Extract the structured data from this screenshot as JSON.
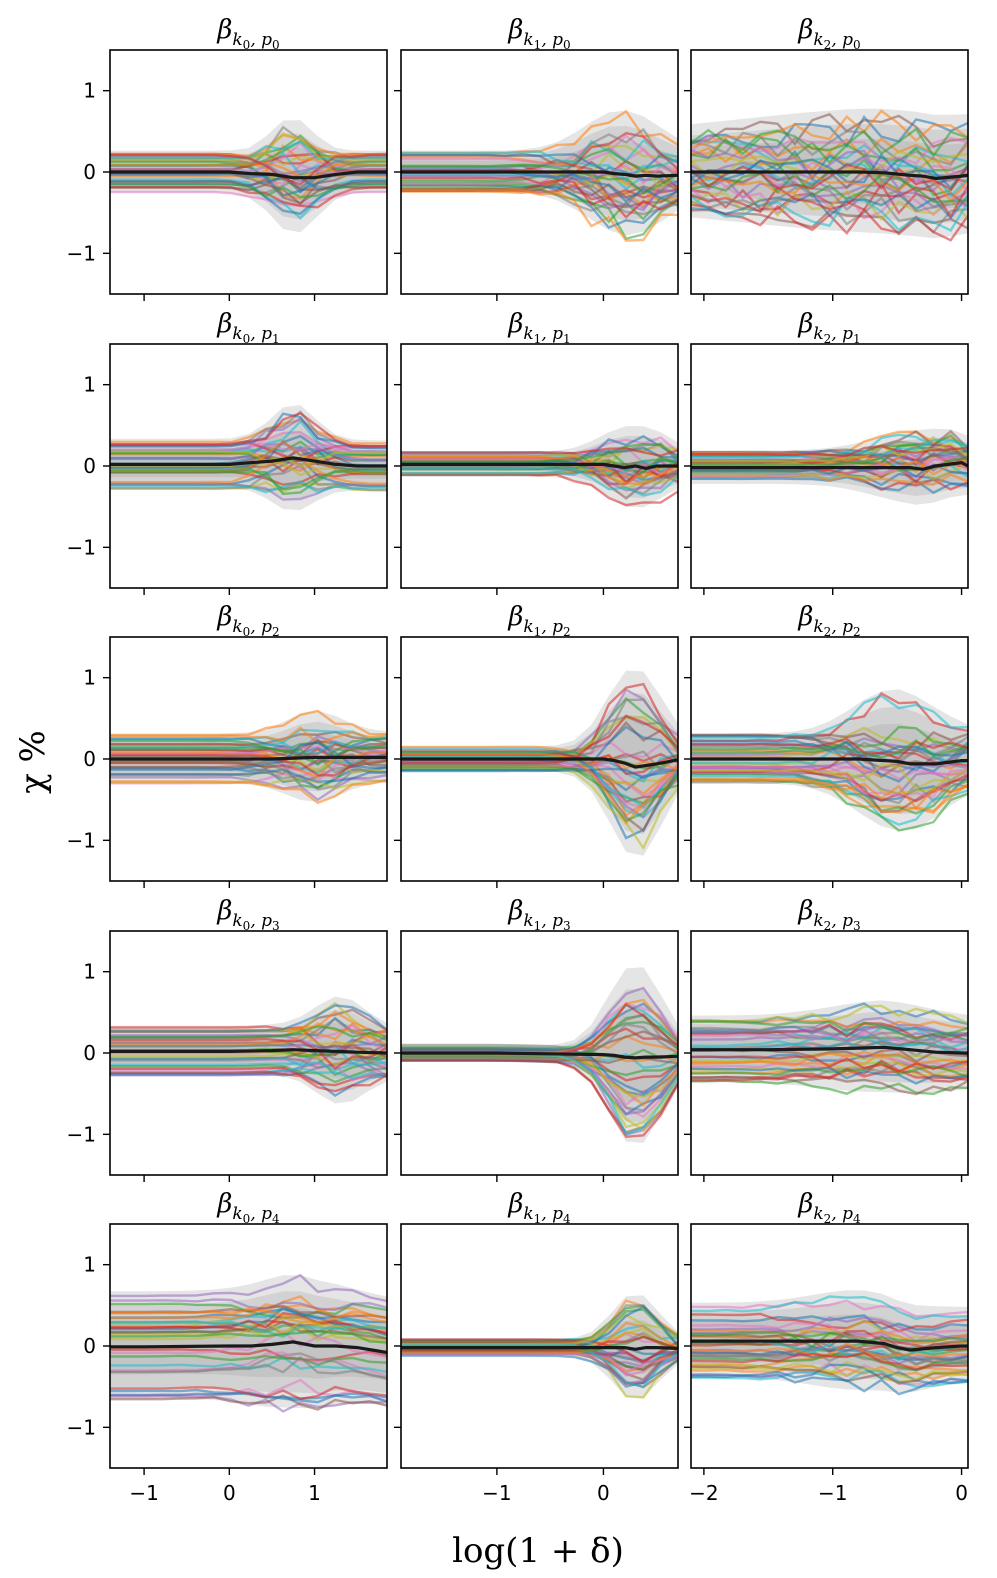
{
  "figure": {
    "ylabel": "χ %",
    "xlabel": "log(1 + δ)"
  },
  "chart_data": {
    "type": "line",
    "rows": 5,
    "cols": 3,
    "ylim": [
      -1.5,
      1.5
    ],
    "yticks": [
      -1,
      0,
      1
    ],
    "ytick_labels": [
      "−1",
      "0",
      "1"
    ],
    "grid": false,
    "columns": [
      {
        "xlim": [
          -1.4,
          1.85
        ],
        "xticks": [
          -1,
          0,
          1
        ],
        "xtick_labels": [
          "−1",
          "0",
          "1"
        ]
      },
      {
        "xlim": [
          -1.9,
          0.7
        ],
        "xticks": [
          -1,
          0
        ],
        "xtick_labels": [
          "−1",
          "0"
        ]
      },
      {
        "xlim": [
          -2.1,
          0.05
        ],
        "xticks": [
          -2,
          -1,
          0
        ],
        "xtick_labels": [
          "−2",
          "−1",
          "0"
        ]
      }
    ],
    "panels": [
      {
        "title": {
          "k": "0",
          "p": "0"
        },
        "band": 0.25,
        "extra": 0.45,
        "peak_x": 0.75,
        "spread": 0.35,
        "noise": 0.15,
        "mean": {
          "x": [
            -1.4,
            -1.0,
            -0.5,
            0.0,
            0.25,
            0.5,
            0.75,
            1.0,
            1.25,
            1.5,
            1.85
          ],
          "y": [
            0.0,
            0.0,
            0.0,
            0.0,
            -0.02,
            -0.03,
            -0.07,
            -0.07,
            -0.03,
            0.0,
            0.0
          ]
        }
      },
      {
        "title": {
          "k": "1",
          "p": "0"
        },
        "band": 0.25,
        "extra": 0.5,
        "peak_x": 0.2,
        "spread": 0.5,
        "noise": 0.18,
        "mean": {
          "x": [
            -1.9,
            -1.0,
            -0.5,
            0.0,
            0.1,
            0.2,
            0.3,
            0.4,
            0.5,
            0.7
          ],
          "y": [
            0.0,
            0.0,
            0.0,
            0.0,
            -0.02,
            -0.03,
            -0.05,
            -0.04,
            -0.05,
            -0.04
          ]
        }
      },
      {
        "title": {
          "k": "2",
          "p": "0"
        },
        "band": 0.45,
        "extra": 0.3,
        "peak_x": -0.5,
        "spread": 1.6,
        "noise": 0.2,
        "mean": {
          "x": [
            -2.1,
            -1.5,
            -1.0,
            -0.8,
            -0.6,
            -0.4,
            -0.3,
            -0.2,
            0.0,
            0.05
          ],
          "y": [
            0.0,
            0.0,
            0.0,
            0.0,
            -0.01,
            -0.04,
            -0.05,
            -0.08,
            -0.05,
            -0.04
          ]
        }
      },
      {
        "title": {
          "k": "0",
          "p": "1"
        },
        "band": 0.3,
        "extra": 0.35,
        "peak_x": 0.75,
        "spread": 0.35,
        "noise": 0.12,
        "mean": {
          "x": [
            -1.4,
            -1.0,
            0.0,
            0.25,
            0.5,
            0.75,
            1.0,
            1.25,
            1.5,
            1.85
          ],
          "y": [
            0.02,
            0.02,
            0.02,
            0.04,
            0.06,
            0.1,
            0.06,
            0.02,
            0.0,
            0.0
          ]
        }
      },
      {
        "title": {
          "k": "1",
          "p": "1"
        },
        "band": 0.15,
        "extra": 0.35,
        "peak_x": 0.3,
        "spread": 0.4,
        "noise": 0.12,
        "mean": {
          "x": [
            -1.9,
            -1.0,
            -0.5,
            0.0,
            0.1,
            0.2,
            0.3,
            0.4,
            0.5,
            0.7
          ],
          "y": [
            0.02,
            0.02,
            0.02,
            0.02,
            0.0,
            -0.02,
            0.0,
            -0.03,
            0.0,
            0.0
          ]
        }
      },
      {
        "title": {
          "k": "2",
          "p": "1"
        },
        "band": 0.2,
        "extra": 0.25,
        "peak_x": -0.3,
        "spread": 0.5,
        "noise": 0.12,
        "mean": {
          "x": [
            -2.1,
            -1.5,
            -1.0,
            -0.6,
            -0.4,
            -0.3,
            -0.2,
            0.0,
            0.05
          ],
          "y": [
            -0.02,
            -0.02,
            -0.02,
            -0.02,
            -0.02,
            -0.04,
            0.0,
            0.04,
            0.0
          ]
        }
      },
      {
        "title": {
          "k": "0",
          "p": "2"
        },
        "band": 0.3,
        "extra": 0.25,
        "peak_x": 1.0,
        "spread": 0.45,
        "noise": 0.12,
        "mean": {
          "x": [
            -1.4,
            -1.0,
            0.0,
            0.5,
            1.0,
            1.25,
            1.5,
            1.85
          ],
          "y": [
            0.0,
            0.0,
            0.0,
            0.0,
            0.02,
            0.02,
            0.02,
            0.02
          ]
        }
      },
      {
        "title": {
          "k": "1",
          "p": "2"
        },
        "band": 0.15,
        "extra": 1.0,
        "peak_x": 0.3,
        "spread": 0.35,
        "noise": 0.15,
        "mean": {
          "x": [
            -1.9,
            -1.0,
            -0.5,
            0.0,
            0.1,
            0.2,
            0.3,
            0.4,
            0.5,
            0.7
          ],
          "y": [
            0.0,
            0.0,
            0.0,
            0.0,
            -0.02,
            -0.05,
            -0.1,
            -0.08,
            -0.06,
            -0.01
          ]
        }
      },
      {
        "title": {
          "k": "2",
          "p": "2"
        },
        "band": 0.3,
        "extra": 0.55,
        "peak_x": -0.5,
        "spread": 0.45,
        "noise": 0.15,
        "mean": {
          "x": [
            -2.1,
            -1.5,
            -1.0,
            -0.8,
            -0.6,
            -0.5,
            -0.4,
            -0.2,
            0.0,
            0.05
          ],
          "y": [
            0.0,
            0.0,
            0.0,
            0.0,
            -0.02,
            -0.03,
            -0.06,
            -0.06,
            -0.02,
            -0.02
          ]
        }
      },
      {
        "title": {
          "k": "0",
          "p": "3"
        },
        "band": 0.3,
        "extra": 0.35,
        "peak_x": 1.3,
        "spread": 0.4,
        "noise": 0.12,
        "mean": {
          "x": [
            -1.4,
            -1.0,
            0.0,
            0.5,
            0.75,
            1.0,
            1.25,
            1.5,
            1.85
          ],
          "y": [
            0.02,
            0.02,
            0.02,
            0.03,
            0.04,
            0.03,
            0.02,
            0.01,
            0.0
          ]
        }
      },
      {
        "title": {
          "k": "1",
          "p": "3"
        },
        "band": 0.1,
        "extra": 1.0,
        "peak_x": 0.3,
        "spread": 0.35,
        "noise": 0.1,
        "mean": {
          "x": [
            -1.9,
            -1.0,
            -0.5,
            0.0,
            0.1,
            0.2,
            0.3,
            0.4,
            0.5,
            0.7
          ],
          "y": [
            0.0,
            0.0,
            -0.01,
            -0.02,
            -0.03,
            -0.05,
            -0.06,
            -0.05,
            -0.05,
            -0.04
          ]
        }
      },
      {
        "title": {
          "k": "2",
          "p": "3"
        },
        "band": 0.4,
        "extra": 0.15,
        "peak_x": -0.6,
        "spread": 0.6,
        "noise": 0.1,
        "mean": {
          "x": [
            -2.1,
            -1.5,
            -1.0,
            -0.8,
            -0.6,
            -0.4,
            -0.2,
            0.0,
            0.05
          ],
          "y": [
            0.04,
            0.04,
            0.05,
            0.06,
            0.07,
            0.04,
            0.01,
            0.0,
            0.0
          ]
        }
      },
      {
        "title": {
          "k": "0",
          "p": "4"
        },
        "band": 0.65,
        "extra": 0.15,
        "peak_x": 0.75,
        "spread": 0.6,
        "noise": 0.1,
        "mean": {
          "x": [
            -1.4,
            -1.0,
            0.0,
            0.25,
            0.5,
            0.75,
            1.0,
            1.25,
            1.5,
            1.85
          ],
          "y": [
            -0.01,
            -0.01,
            0.0,
            0.0,
            0.02,
            0.05,
            0.0,
            0.0,
            -0.02,
            -0.08
          ]
        }
      },
      {
        "title": {
          "k": "1",
          "p": "4"
        },
        "band": 0.1,
        "extra": 0.55,
        "peak_x": 0.3,
        "spread": 0.3,
        "noise": 0.08,
        "mean": {
          "x": [
            -1.9,
            -1.0,
            -0.5,
            0.0,
            0.1,
            0.2,
            0.3,
            0.4,
            0.5,
            0.7
          ],
          "y": [
            -0.02,
            -0.02,
            -0.02,
            -0.02,
            -0.02,
            -0.02,
            -0.04,
            -0.02,
            -0.02,
            -0.03
          ]
        }
      },
      {
        "title": {
          "k": "2",
          "p": "4"
        },
        "band": 0.45,
        "extra": 0.15,
        "peak_x": -0.8,
        "spread": 0.5,
        "noise": 0.1,
        "mean": {
          "x": [
            -2.1,
            -1.5,
            -1.0,
            -0.8,
            -0.6,
            -0.5,
            -0.4,
            -0.2,
            0.0,
            0.05
          ],
          "y": [
            0.06,
            0.06,
            0.06,
            0.06,
            0.03,
            -0.02,
            -0.05,
            -0.02,
            0.0,
            0.0
          ]
        }
      }
    ],
    "palette": [
      "#1f77b4",
      "#ff7f0e",
      "#2ca02c",
      "#d62728",
      "#9467bd",
      "#8c564b",
      "#e377c2",
      "#7f7f7f",
      "#bcbd22",
      "#17becf"
    ],
    "band_color": "#a0a0a0",
    "mean_color": "#1a1a1a"
  }
}
